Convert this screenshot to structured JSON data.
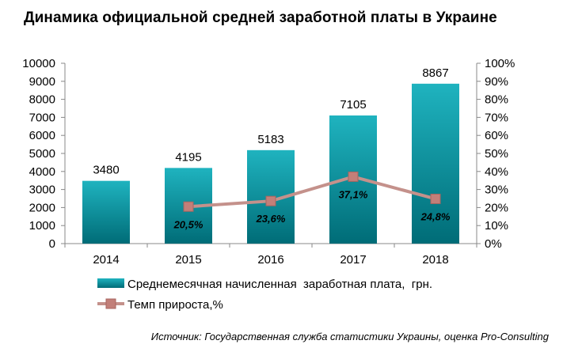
{
  "title": "Динамика официальной средней заработной платы в Украине",
  "source": "Источник: Государственная служба статистики Украины, оценка Pro-Consulting",
  "colors": {
    "bar_top": "#1fb3bf",
    "bar_bottom": "#006c77",
    "line": "#c4918b",
    "marker": "#c27f79",
    "axis": "#888888"
  },
  "chart_data": {
    "type": "bar",
    "categories": [
      "2014",
      "2015",
      "2016",
      "2017",
      "2018"
    ],
    "series": [
      {
        "name": "Среднемесячная начисленная  заработная плата,  грн.",
        "type": "bar",
        "axis": "left",
        "values": [
          3480,
          4195,
          5183,
          7105,
          8867
        ],
        "labels": [
          "3480",
          "4195",
          "5183",
          "7105",
          "8867"
        ]
      },
      {
        "name": "Темп прироста,%",
        "type": "line",
        "axis": "right",
        "values": [
          null,
          20.5,
          23.6,
          37.1,
          24.8
        ],
        "labels": [
          "",
          "20,5%",
          "23,6%",
          "37,1%",
          "24,8%"
        ]
      }
    ],
    "ylim_left": [
      0,
      10000
    ],
    "ylim_right": [
      0,
      100
    ],
    "yticks_left": [
      "0",
      "1000",
      "2000",
      "3000",
      "4000",
      "5000",
      "6000",
      "7000",
      "8000",
      "9000",
      "10000"
    ],
    "yticks_right": [
      "0%",
      "10%",
      "20%",
      "30%",
      "40%",
      "50%",
      "60%",
      "70%",
      "80%",
      "90%",
      "100%"
    ],
    "legend_position": "bottom",
    "grid": false
  }
}
